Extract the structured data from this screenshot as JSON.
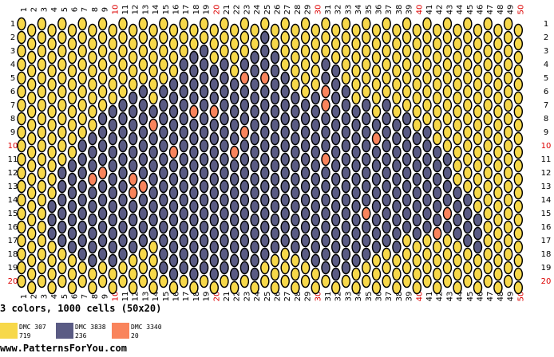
{
  "columns": [
    1,
    2,
    3,
    4,
    5,
    6,
    7,
    8,
    9,
    10,
    11,
    12,
    13,
    14,
    15,
    16,
    17,
    18,
    19,
    20,
    21,
    22,
    23,
    24,
    25,
    26,
    27,
    28,
    29,
    30,
    31,
    32,
    33,
    34,
    35,
    36,
    37,
    38,
    39,
    40,
    41,
    42,
    43,
    44,
    45,
    46,
    47,
    48,
    49,
    50
  ],
  "rows": [
    1,
    2,
    3,
    4,
    5,
    6,
    7,
    8,
    9,
    10,
    11,
    12,
    13,
    14,
    15,
    16,
    17,
    18,
    19,
    20
  ],
  "summary": "3 colors, 1000 cells (50x20)",
  "legend": [
    {
      "name": "DMC 307",
      "count": "719",
      "color": "#f7d84a"
    },
    {
      "name": "DMC 3838",
      "count": "236",
      "color": "#5a5b84"
    },
    {
      "name": "DMC 3340",
      "count": "20",
      "color": "#f9845c"
    }
  ],
  "footer": "www.PatternsForYou.com",
  "dark_spans": [
    [
      4,
      14,
      16
    ],
    [
      5,
      12,
      17
    ],
    [
      6,
      11,
      17
    ],
    [
      7,
      10,
      18
    ],
    [
      8,
      9,
      18
    ],
    [
      9,
      8,
      18
    ],
    [
      10,
      7,
      18
    ],
    [
      11,
      7,
      18
    ],
    [
      12,
      6,
      17
    ],
    [
      13,
      6,
      17
    ],
    [
      14,
      7,
      16
    ],
    [
      15,
      6,
      19
    ],
    [
      16,
      5,
      19
    ],
    [
      17,
      4,
      19
    ],
    [
      18,
      3,
      19
    ],
    [
      19,
      3,
      19
    ],
    [
      20,
      4,
      19
    ],
    [
      21,
      4,
      19
    ],
    [
      22,
      5,
      19
    ],
    [
      23,
      4,
      19
    ],
    [
      24,
      3,
      19
    ],
    [
      25,
      2,
      18
    ],
    [
      26,
      3,
      17
    ],
    [
      27,
      5,
      17
    ],
    [
      28,
      6,
      17
    ],
    [
      29,
      7,
      18
    ],
    [
      30,
      6,
      18
    ],
    [
      31,
      4,
      19
    ],
    [
      32,
      4,
      19
    ],
    [
      33,
      6,
      19
    ],
    [
      34,
      7,
      18
    ],
    [
      35,
      7,
      18
    ],
    [
      36,
      8,
      17
    ],
    [
      37,
      7,
      17
    ],
    [
      38,
      8,
      17
    ],
    [
      39,
      8,
      16
    ],
    [
      40,
      9,
      16
    ],
    [
      41,
      9,
      16
    ],
    [
      42,
      10,
      16
    ],
    [
      43,
      11,
      16
    ],
    [
      44,
      13,
      16
    ],
    [
      45,
      14,
      17
    ],
    [
      46,
      15,
      17
    ]
  ],
  "accent_cells": [
    [
      8,
      12
    ],
    [
      9,
      12
    ],
    [
      12,
      12
    ],
    [
      12,
      13
    ],
    [
      13,
      13
    ],
    [
      14,
      8
    ],
    [
      16,
      10
    ],
    [
      18,
      7
    ],
    [
      20,
      7
    ],
    [
      22,
      10
    ],
    [
      23,
      5
    ],
    [
      23,
      9
    ],
    [
      25,
      5
    ],
    [
      31,
      6
    ],
    [
      31,
      7
    ],
    [
      31,
      11
    ],
    [
      35,
      15
    ],
    [
      36,
      9
    ],
    [
      42,
      16
    ],
    [
      43,
      15
    ]
  ]
}
